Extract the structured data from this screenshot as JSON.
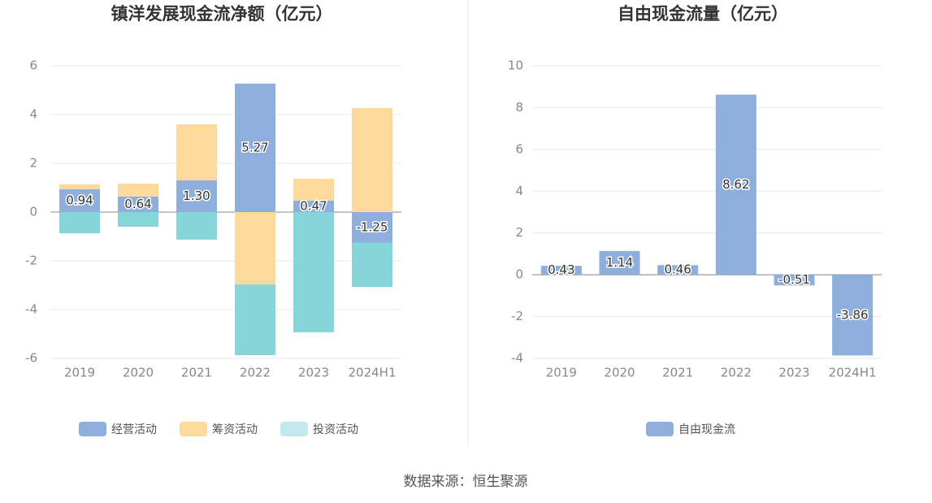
{
  "chart_data": [
    {
      "type": "stacked_bar",
      "title": "镇洋发展现金流净额（亿元）",
      "categories": [
        "2019",
        "2020",
        "2021",
        "2022",
        "2023",
        "2024H1"
      ],
      "series": [
        {
          "name": "经营活动",
          "color": "#8eaedc",
          "values": [
            0.94,
            0.64,
            1.3,
            5.27,
            0.47,
            -1.25
          ],
          "value_labels": [
            "0.94",
            "0.64",
            "1.30",
            "5.27",
            "0.47",
            "-1.25"
          ]
        },
        {
          "name": "筹资活动",
          "color": "#fdd99b",
          "values": [
            0.2,
            0.53,
            2.3,
            -2.97,
            0.9,
            4.27
          ]
        },
        {
          "name": "投资活动",
          "color": "#86d6d9",
          "values": [
            -0.87,
            -0.6,
            -1.13,
            -2.9,
            -4.93,
            -1.82
          ]
        }
      ],
      "ylim": [
        -6,
        6
      ],
      "yticks": [
        -6,
        -4,
        -2,
        0,
        2,
        4,
        6
      ],
      "grid": true,
      "legend": "bottom"
    },
    {
      "type": "bar",
      "title": "自由现金流量（亿元）",
      "categories": [
        "2019",
        "2020",
        "2021",
        "2022",
        "2023",
        "2024H1"
      ],
      "series": [
        {
          "name": "自由现金流",
          "color": "#8eaedc",
          "values": [
            0.43,
            1.14,
            0.46,
            8.62,
            -0.51,
            -3.86
          ]
        }
      ],
      "ylim": [
        -4,
        10
      ],
      "yticks": [
        -4,
        -2,
        0,
        2,
        4,
        6,
        8,
        10
      ],
      "grid": true,
      "legend": "bottom"
    }
  ],
  "source": "数据来源：恒生聚源"
}
